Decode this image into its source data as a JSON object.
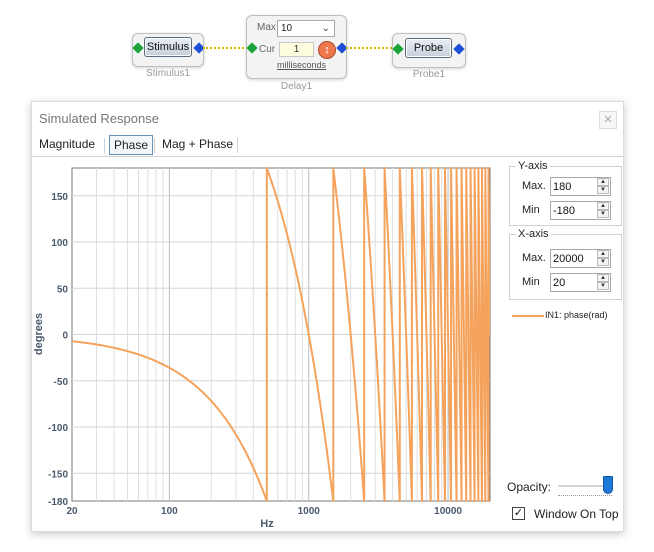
{
  "diagram": {
    "stimulus": {
      "button_label": "Stimulus",
      "caption": "Stimulus1"
    },
    "delay": {
      "max_label": "Max",
      "max_value": "10",
      "cur_label": "Cur",
      "cur_value": "1",
      "units_link": "milliseconds",
      "caption": "Delay1"
    },
    "probe": {
      "button_label": "Probe",
      "caption": "Probe1"
    }
  },
  "window": {
    "title": "Simulated Response",
    "close_glyph": "✕",
    "tabs": [
      {
        "label": "Magnitude"
      },
      {
        "label": "Phase"
      },
      {
        "label": "Mag + Phase"
      }
    ],
    "active_tab": "Phase"
  },
  "yaxis_panel": {
    "title": "Y-axis",
    "max_label": "Max.",
    "max_value": "180",
    "min_label": "Min",
    "min_value": "-180"
  },
  "xaxis_panel": {
    "title": "X-axis",
    "max_label": "Max.",
    "max_value": "20000",
    "min_label": "Min",
    "min_value": "20"
  },
  "legend": {
    "label": "IN1: phase(rad)",
    "color": "#f5a35c"
  },
  "opacity": {
    "label": "Opacity:",
    "value": 1.0
  },
  "window_on_top": {
    "label": "Window On Top",
    "checked": true,
    "check_glyph": "✓"
  },
  "colors": {
    "series": "#f5a35c",
    "axis_text": "#4a5a6e",
    "accent": "#1e78d7"
  },
  "chart_data": {
    "type": "line",
    "title": "",
    "xlabel": "Hz",
    "ylabel": "degrees",
    "xscale": "log",
    "xlim": [
      20,
      20000
    ],
    "ylim": [
      -180,
      180
    ],
    "grid": true,
    "legend_position": "right",
    "x_ticks": [
      "20",
      "100",
      "1000",
      "10000"
    ],
    "y_ticks": [
      "150",
      "100",
      "50",
      "0",
      "-50",
      "-100",
      "-150",
      "-180"
    ],
    "series": [
      {
        "name": "IN1: phase(rad)",
        "description": "phase of a 1 ms delay, wrapped to ±180°",
        "delay_ms": 1
      }
    ]
  }
}
